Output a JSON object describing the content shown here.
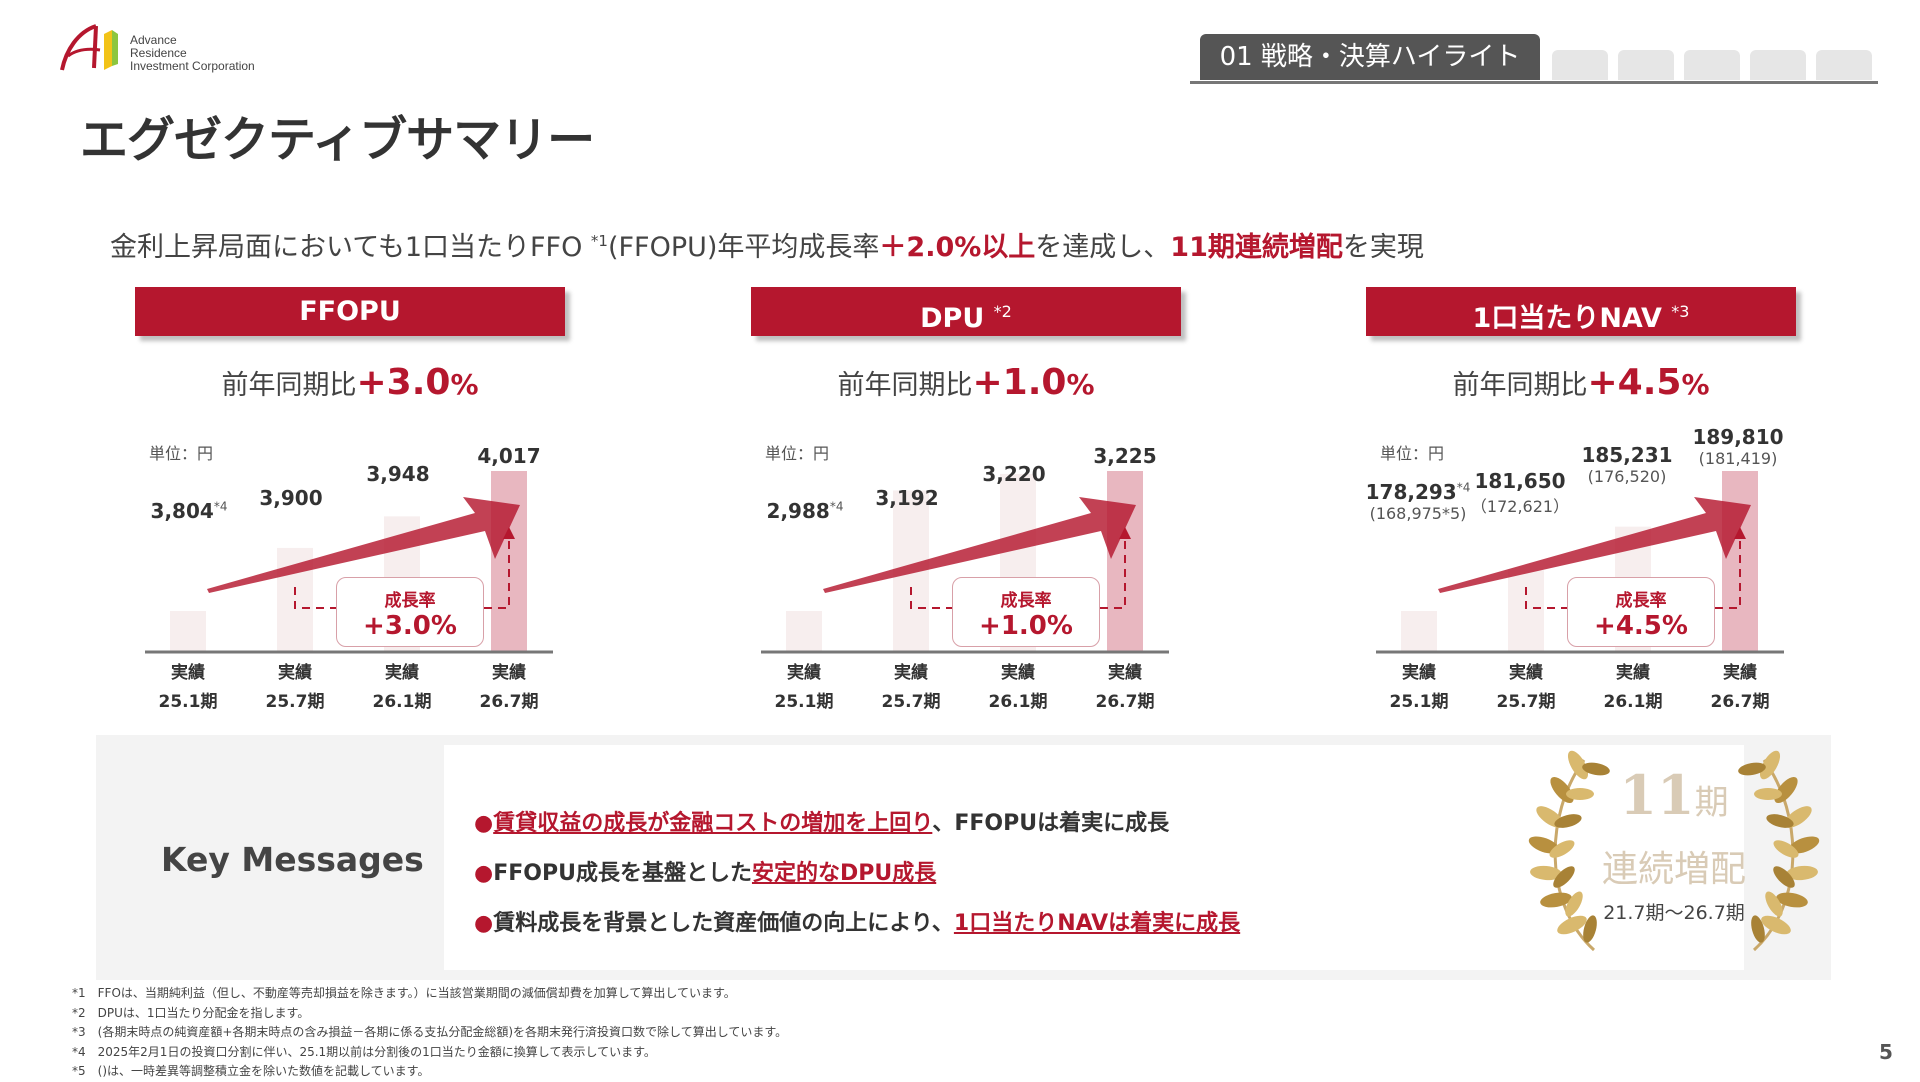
{
  "logo": {
    "line1": "Advance",
    "line2": "Residence",
    "line3": "Investment Corporation"
  },
  "nav": {
    "active_tab": "01 戦略・決算ハイライト"
  },
  "title": "エグゼクティブサマリー",
  "headline": {
    "part1": "金利上昇局面においても1口当たりFFO ",
    "sup": "*1",
    "part2": "(FFOPU)年平均成長率",
    "hl1": "＋2.0%以上",
    "part3": "を達成し、",
    "hl2": "11期連続増配",
    "part4": "を実現"
  },
  "unit_label": "単位：円",
  "yoy_prefix": "前年同期比",
  "growth_label": "成長率",
  "chart_data": [
    {
      "type": "bar",
      "title": "FFOPU",
      "title_sup": "",
      "yoy": "+3.0",
      "growth": "+3.0%",
      "categories": [
        "実績 25.1期",
        "実績 25.7期",
        "実績 26.1期",
        "実績 26.7期"
      ],
      "values": [
        3804,
        3900,
        3948,
        4017
      ],
      "labels": [
        "3,804",
        "3,900",
        "3,948",
        "4,017"
      ],
      "label_sups": [
        "*4",
        "",
        "",
        ""
      ],
      "sublabels": [
        "",
        "",
        "",
        ""
      ]
    },
    {
      "type": "bar",
      "title": "DPU",
      "title_sup": "*2",
      "yoy": "+1.0",
      "growth": "+1.0%",
      "categories": [
        "実績 25.1期",
        "実績 25.7期",
        "実績 26.1期",
        "実績 26.7期"
      ],
      "values": [
        2988,
        3192,
        3220,
        3225
      ],
      "labels": [
        "2,988",
        "3,192",
        "3,220",
        "3,225"
      ],
      "label_sups": [
        "*4",
        "",
        "",
        ""
      ],
      "sublabels": [
        "",
        "",
        "",
        ""
      ]
    },
    {
      "type": "bar",
      "title": "1口当たりNAV",
      "title_sup": "*3",
      "yoy": "+4.5",
      "growth": "+4.5%",
      "categories": [
        "実績 25.1期",
        "実績 25.7期",
        "実績 26.1期",
        "実績 26.7期"
      ],
      "values": [
        178293,
        181650,
        185231,
        189810
      ],
      "labels": [
        "178,293",
        "181,650",
        "185,231",
        "189,810"
      ],
      "label_sups": [
        "*4",
        "",
        "",
        ""
      ],
      "sublabels": [
        "(168,975*5)",
        "（172,621）",
        "(176,520)",
        "(181,419)"
      ]
    }
  ],
  "x_top": [
    "実績",
    "実績",
    "実績",
    "実績"
  ],
  "x_bottom": [
    "25.1期",
    "25.7期",
    "26.1期",
    "26.7期"
  ],
  "key_messages": {
    "label": "Key Messages",
    "m1_em": "賃貸収益の成長が金融コストの増加を上回り",
    "m1_rest": "、FFOPUは着実に成長",
    "m2_pre": "FFOPU成長を基盤とした",
    "m2_em": "安定的なDPU成長",
    "m3_pre": "賃料成長を背景とした資産価値の向上により、",
    "m3_em": "1口当たりNAVは着実に成長"
  },
  "wreath": {
    "num": "11",
    "unit": "期",
    "text": "連続増配",
    "period": "21.7期～26.7期"
  },
  "footnotes": [
    "*1　FFOは、当期純利益（但し、不動産等売却損益を除きます。）に当該営業期間の減価償却費を加算して算出しています。",
    "*2　DPUは、1口当たり分配金を指します。",
    "*3　(各期末時点の純資産額+各期末時点の含み損益－各期に係る支払分配金総額)を各期末発行済投資口数で除して算出しています。",
    "*4　2025年2月1日の投資口分割に伴い、25.1期以前は分割後の1口当たり金額に換算して表示しています。",
    "*5　()は、一時差異等調整積立金を除いた数値を記載しています。"
  ],
  "page_number": "5",
  "colors": {
    "accent": "#b5172e",
    "bar_light": "#f7eeee",
    "bar_last": "#e8b7c0"
  }
}
